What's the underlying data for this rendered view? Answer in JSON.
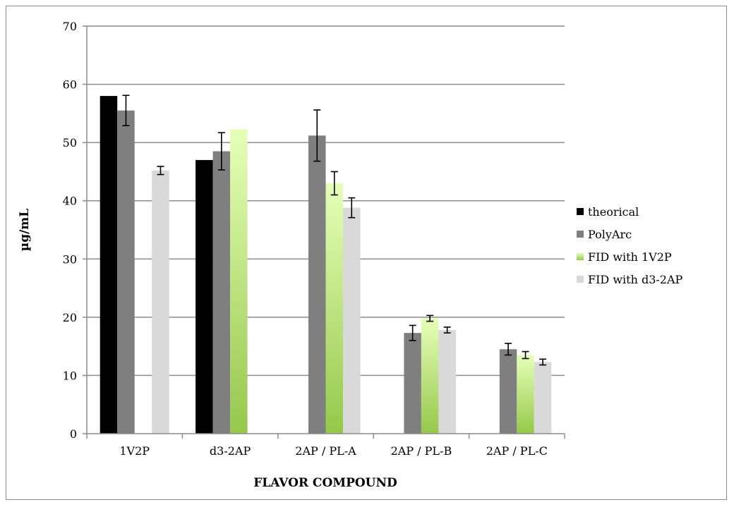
{
  "chart_data": {
    "type": "bar",
    "title": "",
    "xlabel": "FLAVOR COMPOUND",
    "ylabel": "µg/mL",
    "ylim": [
      0,
      70
    ],
    "yticks": [
      0,
      10,
      20,
      30,
      40,
      50,
      60,
      70
    ],
    "grid": true,
    "legend_position": "right",
    "categories": [
      "1V2P",
      "d3-2AP",
      "2AP / PL-A",
      "2AP / PL-B",
      "2AP / PL-C"
    ],
    "series": [
      {
        "name": "theorical",
        "color": "#000000",
        "values": [
          58,
          47,
          null,
          null,
          null
        ],
        "errors": [
          null,
          null,
          null,
          null,
          null
        ]
      },
      {
        "name": "PolyArc",
        "color": "#7f7f7f",
        "values": [
          55.5,
          48.5,
          51.2,
          17.3,
          14.5
        ],
        "errors": [
          2.6,
          3.2,
          4.4,
          1.3,
          1.0
        ]
      },
      {
        "name": "FID with 1V2P",
        "color": "#9bd04a",
        "values": [
          null,
          52.3,
          43.0,
          19.8,
          13.5
        ],
        "errors": [
          null,
          null,
          2.0,
          0.5,
          0.6
        ]
      },
      {
        "name": "FID with d3-2AP",
        "color": "#d9d9d9",
        "values": [
          45.2,
          null,
          38.8,
          17.8,
          12.3
        ],
        "errors": [
          0.7,
          null,
          1.7,
          0.5,
          0.5
        ]
      }
    ]
  }
}
